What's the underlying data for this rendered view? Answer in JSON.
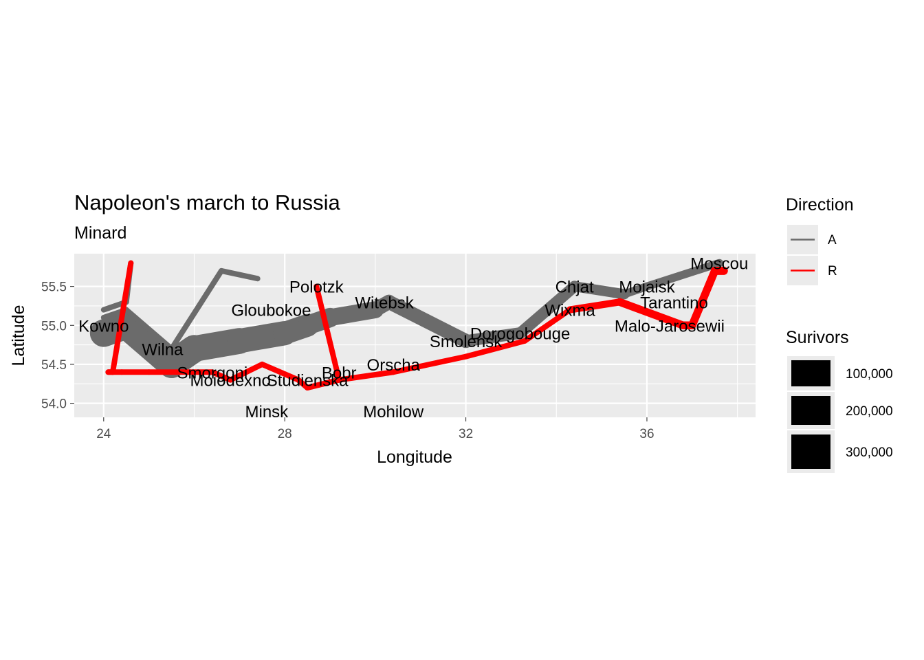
{
  "chart_data": {
    "type": "line",
    "title": "Napoleon's march to Russia",
    "subtitle": "Minard",
    "xlabel": "Longitude",
    "ylabel": "Latitude",
    "xlim": [
      23.35,
      38.4
    ],
    "ylim": [
      53.82,
      55.92
    ],
    "x_ticks": [
      24,
      26,
      28,
      30,
      32,
      34,
      36,
      38
    ],
    "x_tick_labels": [
      "24",
      "28",
      "32",
      "36"
    ],
    "x_labeled_ticks": [
      24,
      28,
      32,
      36
    ],
    "y_ticks": [
      54.0,
      54.5,
      55.0,
      55.5
    ],
    "y_tick_labels": [
      "54.0",
      "54.5",
      "55.0",
      "55.5"
    ],
    "grid": true,
    "legend_direction": {
      "title": "Direction",
      "items": [
        {
          "label": "A",
          "color": "#6b6b6b"
        },
        {
          "label": "R",
          "color": "#ff0000"
        }
      ]
    },
    "legend_size": {
      "title": "Surivors",
      "items": [
        {
          "label": "100,000",
          "value": 100000
        },
        {
          "label": "200,000",
          "value": 200000
        },
        {
          "label": "300,000",
          "value": 300000
        }
      ]
    },
    "colors": {
      "A": "#6b6b6b",
      "R": "#ff0000",
      "panel": "#ebebeb",
      "grid": "#ffffff"
    },
    "troops": [
      {
        "group": 1,
        "direction": "A",
        "path": [
          {
            "long": 24.0,
            "lat": 54.9,
            "survivors": 340000
          },
          {
            "long": 24.5,
            "lat": 55.0,
            "survivors": 340000
          },
          {
            "long": 25.5,
            "lat": 54.5,
            "survivors": 340000
          },
          {
            "long": 26.0,
            "lat": 54.7,
            "survivors": 320000
          },
          {
            "long": 27.0,
            "lat": 54.8,
            "survivors": 300000
          },
          {
            "long": 28.0,
            "lat": 54.9,
            "survivors": 280000
          },
          {
            "long": 28.5,
            "lat": 55.0,
            "survivors": 240000
          },
          {
            "long": 29.0,
            "lat": 55.1,
            "survivors": 210000
          },
          {
            "long": 30.0,
            "lat": 55.2,
            "survivors": 180000
          },
          {
            "long": 30.3,
            "lat": 55.3,
            "survivors": 175000
          },
          {
            "long": 32.0,
            "lat": 54.8,
            "survivors": 145000
          },
          {
            "long": 33.2,
            "lat": 54.9,
            "survivors": 140000
          },
          {
            "long": 34.4,
            "lat": 55.5,
            "survivors": 127100
          },
          {
            "long": 35.5,
            "lat": 55.4,
            "survivors": 100000
          },
          {
            "long": 36.0,
            "lat": 55.5,
            "survivors": 100000
          },
          {
            "long": 37.6,
            "lat": 55.8,
            "survivors": 100000
          }
        ]
      },
      {
        "group": 1,
        "direction": "R",
        "path": [
          {
            "long": 37.7,
            "lat": 55.7,
            "survivors": 100000
          },
          {
            "long": 37.5,
            "lat": 55.7,
            "survivors": 98000
          },
          {
            "long": 37.0,
            "lat": 55.0,
            "survivors": 97000
          },
          {
            "long": 36.8,
            "lat": 55.0,
            "survivors": 96000
          },
          {
            "long": 35.4,
            "lat": 55.3,
            "survivors": 87000
          },
          {
            "long": 34.3,
            "lat": 55.2,
            "survivors": 55000
          },
          {
            "long": 33.3,
            "lat": 54.8,
            "survivors": 37000
          },
          {
            "long": 32.0,
            "lat": 54.6,
            "survivors": 24000
          },
          {
            "long": 30.4,
            "lat": 54.4,
            "survivors": 20000
          },
          {
            "long": 29.2,
            "lat": 54.3,
            "survivors": 20000
          },
          {
            "long": 28.5,
            "lat": 54.2,
            "survivors": 20000
          },
          {
            "long": 28.3,
            "lat": 54.3,
            "survivors": 20000
          },
          {
            "long": 27.5,
            "lat": 54.5,
            "survivors": 20000
          },
          {
            "long": 26.8,
            "lat": 54.3,
            "survivors": 12000
          },
          {
            "long": 26.4,
            "lat": 54.4,
            "survivors": 14000
          },
          {
            "long": 25.0,
            "lat": 54.4,
            "survivors": 8000
          },
          {
            "long": 24.4,
            "lat": 54.4,
            "survivors": 4000
          },
          {
            "long": 24.2,
            "lat": 54.4,
            "survivors": 4000
          },
          {
            "long": 24.1,
            "lat": 54.4,
            "survivors": 4000
          }
        ]
      },
      {
        "group": 2,
        "direction": "A",
        "path": [
          {
            "long": 24.0,
            "lat": 55.1,
            "survivors": 60000
          },
          {
            "long": 24.5,
            "lat": 55.2,
            "survivors": 60000
          },
          {
            "long": 25.5,
            "lat": 54.7,
            "survivors": 60000
          },
          {
            "long": 26.6,
            "lat": 55.7,
            "survivors": 40000
          },
          {
            "long": 27.4,
            "lat": 55.6,
            "survivors": 33000
          }
        ]
      },
      {
        "group": 2,
        "direction": "R",
        "path": [
          {
            "long": 28.7,
            "lat": 55.5,
            "survivors": 33000
          },
          {
            "long": 29.2,
            "lat": 54.3,
            "survivors": 30000
          },
          {
            "long": 28.5,
            "lat": 54.2,
            "survivors": 30000
          },
          {
            "long": 28.3,
            "lat": 54.3,
            "survivors": 28000
          }
        ]
      },
      {
        "group": 3,
        "direction": "A",
        "path": [
          {
            "long": 24.0,
            "lat": 55.2,
            "survivors": 22000
          },
          {
            "long": 24.5,
            "lat": 55.3,
            "survivors": 22000
          },
          {
            "long": 24.6,
            "lat": 55.8,
            "survivors": 6000
          }
        ]
      },
      {
        "group": 3,
        "direction": "R",
        "path": [
          {
            "long": 24.6,
            "lat": 55.8,
            "survivors": 6000
          },
          {
            "long": 24.2,
            "lat": 54.4,
            "survivors": 6000
          },
          {
            "long": 24.1,
            "lat": 54.4,
            "survivors": 6000
          }
        ]
      }
    ],
    "cities": [
      {
        "name": "Kowno",
        "long": 24.0,
        "lat": 55.0
      },
      {
        "name": "Wilna",
        "long": 25.3,
        "lat": 54.7
      },
      {
        "name": "Smorgoni",
        "long": 26.4,
        "lat": 54.4
      },
      {
        "name": "Moiodexno",
        "long": 26.8,
        "lat": 54.3
      },
      {
        "name": "Gloubokoe",
        "long": 27.7,
        "lat": 55.2
      },
      {
        "name": "Minsk",
        "long": 27.6,
        "lat": 53.9
      },
      {
        "name": "Studienska",
        "long": 28.5,
        "lat": 54.3
      },
      {
        "name": "Polotzk",
        "long": 28.7,
        "lat": 55.5
      },
      {
        "name": "Bobr",
        "long": 29.2,
        "lat": 54.4
      },
      {
        "name": "Witebsk",
        "long": 30.2,
        "lat": 55.3
      },
      {
        "name": "Orscha",
        "long": 30.4,
        "lat": 54.5
      },
      {
        "name": "Mohilow",
        "long": 30.4,
        "lat": 53.9
      },
      {
        "name": "Smolensk",
        "long": 32.0,
        "lat": 54.8
      },
      {
        "name": "Dorogobouge",
        "long": 33.2,
        "lat": 54.9
      },
      {
        "name": "Wixma",
        "long": 34.3,
        "lat": 55.2
      },
      {
        "name": "Chjat",
        "long": 34.4,
        "lat": 55.5
      },
      {
        "name": "Mojaisk",
        "long": 36.0,
        "lat": 55.5
      },
      {
        "name": "Moscou",
        "long": 37.6,
        "lat": 55.8
      },
      {
        "name": "Tarantino",
        "long": 36.6,
        "lat": 55.3
      },
      {
        "name": "Malo-Jarosewii",
        "long": 36.5,
        "lat": 55.0
      }
    ]
  }
}
